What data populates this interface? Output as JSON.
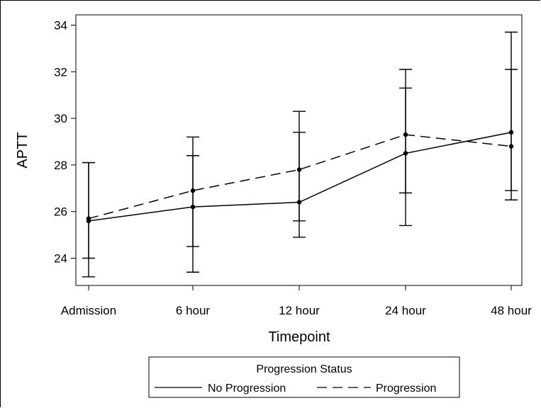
{
  "chart_data": {
    "type": "line",
    "xlabel": "Timepoint",
    "ylabel": "APTT",
    "categories": [
      "Admission",
      "6 hour",
      "12 hour",
      "24 hour",
      "48 hour"
    ],
    "ylim": [
      23,
      34.5
    ],
    "yticks": [
      24,
      26,
      28,
      30,
      32,
      34
    ],
    "grid": false,
    "legend": {
      "title": "Progression Status",
      "placement": "bottom-center"
    },
    "series": [
      {
        "name": "No Progression",
        "line_style": "solid",
        "values": [
          25.6,
          26.2,
          26.4,
          28.5,
          29.4
        ],
        "lower": [
          23.2,
          23.4,
          24.9,
          25.4,
          26.5
        ],
        "upper": [
          28.1,
          28.4,
          29.4,
          31.3,
          32.1
        ]
      },
      {
        "name": "Progression",
        "line_style": "dashed",
        "values": [
          25.7,
          26.9,
          27.8,
          29.3,
          28.8
        ],
        "lower": [
          24.0,
          24.5,
          25.6,
          26.8,
          26.9
        ],
        "upper": [
          28.1,
          29.2,
          30.3,
          32.1,
          33.7
        ]
      }
    ]
  }
}
